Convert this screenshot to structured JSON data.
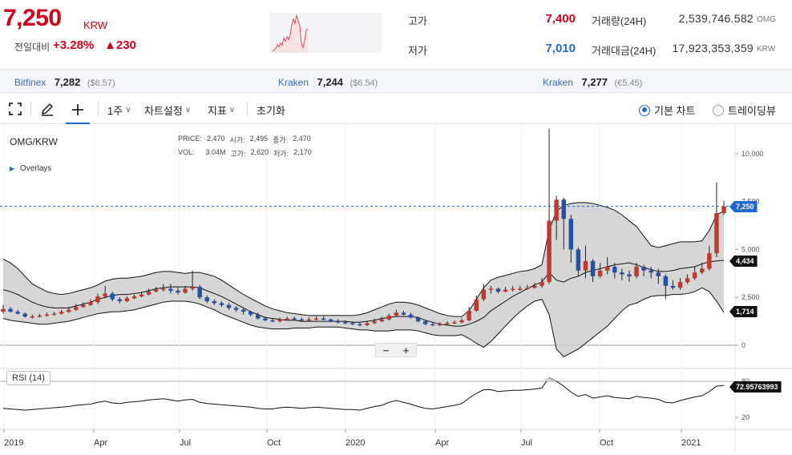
{
  "header": {
    "price": "7,250",
    "unit": "KRW",
    "change_label": "전일대비",
    "change_pct": "+3.28%",
    "change_abs": "▲230",
    "high_label": "고가",
    "high_value": "7,400",
    "low_label": "저가",
    "low_value": "7,010",
    "volume_label": "거래량(24H)",
    "volume_value": "2,539,746.582",
    "volume_unit": "OMG",
    "amount_label": "거래대금(24H)",
    "amount_value": "17,923,353,359",
    "amount_unit": "KRW"
  },
  "exchanges": [
    {
      "name": "Bitfinex",
      "price": "7,282",
      "alt": "($6.57)"
    },
    {
      "name": "Kraken",
      "price": "7,244",
      "alt": "($6.54)"
    },
    {
      "name": "Kraken",
      "price": "7,277",
      "alt": "(€5.45)"
    }
  ],
  "toolbar": {
    "interval": "1주",
    "chart_settings": "차트설정",
    "indicators": "지표",
    "reset": "초기화",
    "basic_chart": "기본 차트",
    "tradingview": "트레이딩뷰"
  },
  "chart_info": {
    "symbol": "OMG/KRW",
    "overlays": "Overlays",
    "price_label": "PRICE:",
    "price": "2,470",
    "open_label": "시가:",
    "open": "2,495",
    "close_label": "종가:",
    "close": "2,470",
    "vol_label": "VOL:",
    "vol": "3.04M",
    "high_label": "고가:",
    "high": "2,620",
    "low_label": "저가:",
    "low": "2,170",
    "last_tag": "7,250",
    "upper_tag": "4,434",
    "lower_tag": "1,714",
    "rsi_label": "RSI (14)",
    "rsi_tag": "72.95763993",
    "zoom_out": "−",
    "zoom_in": "+"
  },
  "colors": {
    "up": "#c0392b",
    "down": "#2451a8",
    "accent_red": "#d0021b",
    "accent_blue": "#1e6ad0",
    "band_fill": "#cfcfcf"
  },
  "chart_data": {
    "type": "candlestick",
    "x_ticks": [
      "2019",
      "Apr",
      "Jul",
      "Oct",
      "2020",
      "Apr",
      "Jul",
      "Oct",
      "2021"
    ],
    "y_ticks": [
      "10,000",
      "7,500",
      "5,000",
      "2,500",
      "0"
    ],
    "ylim": [
      0,
      11500
    ],
    "rsi_ticks": [
      "80",
      "20"
    ],
    "close": [
      1900,
      1750,
      1650,
      1500,
      1500,
      1550,
      1600,
      1650,
      1750,
      1850,
      2000,
      2100,
      2250,
      2550,
      2700,
      2400,
      2300,
      2450,
      2550,
      2650,
      2800,
      2900,
      2950,
      2850,
      2750,
      2950,
      3050,
      2500,
      2300,
      2200,
      2100,
      1950,
      1850,
      1750,
      1600,
      1400,
      1300,
      1250,
      1350,
      1400,
      1350,
      1300,
      1350,
      1400,
      1350,
      1250,
      1200,
      1150,
      1100,
      1050,
      1150,
      1250,
      1350,
      1550,
      1700,
      1600,
      1450,
      1250,
      1100,
      1050,
      1100,
      1150,
      1200,
      1300,
      1800,
      2400,
      2900,
      2950,
      2800,
      2900,
      2950,
      2950,
      3000,
      3100,
      3300,
      6500,
      7600,
      6600,
      5000,
      3900,
      4400,
      3600,
      3900,
      4100,
      3800,
      3700,
      3600,
      4100,
      3900,
      3800,
      3600,
      3100,
      3000,
      3300,
      3500,
      3800,
      4000,
      4800,
      6900,
      7250
    ],
    "open": [
      1750,
      1900,
      1750,
      1650,
      1500,
      1500,
      1550,
      1600,
      1650,
      1750,
      1850,
      2000,
      2100,
      2250,
      2550,
      2700,
      2400,
      2300,
      2450,
      2550,
      2650,
      2800,
      2900,
      2950,
      2850,
      2750,
      2950,
      3050,
      2500,
      2300,
      2200,
      2100,
      1950,
      1850,
      1750,
      1600,
      1400,
      1300,
      1250,
      1350,
      1400,
      1350,
      1300,
      1350,
      1400,
      1350,
      1250,
      1200,
      1150,
      1100,
      1050,
      1150,
      1250,
      1350,
      1550,
      1700,
      1600,
      1450,
      1250,
      1100,
      1050,
      1100,
      1150,
      1200,
      1300,
      1800,
      2400,
      2900,
      2950,
      2800,
      2900,
      2950,
      2950,
      3000,
      3100,
      3300,
      6500,
      7600,
      6600,
      5000,
      3900,
      4400,
      3600,
      3900,
      4100,
      3800,
      3700,
      3600,
      4100,
      3900,
      3800,
      3600,
      3100,
      3000,
      3300,
      3500,
      3800,
      4000,
      4800,
      6900
    ],
    "high": [
      2100,
      2000,
      1850,
      1700,
      1600,
      1650,
      1700,
      1750,
      1850,
      2000,
      2150,
      2250,
      2400,
      2700,
      3100,
      2800,
      2500,
      2550,
      2650,
      2800,
      2950,
      3050,
      3200,
      3200,
      3000,
      3100,
      3900,
      3150,
      2600,
      2400,
      2300,
      2200,
      2050,
      1950,
      1800,
      1700,
      1500,
      1400,
      1450,
      1500,
      1500,
      1450,
      1450,
      1500,
      1500,
      1400,
      1350,
      1300,
      1250,
      1200,
      1250,
      1400,
      1500,
      1650,
      1850,
      1800,
      1700,
      1500,
      1300,
      1200,
      1200,
      1250,
      1300,
      1400,
      2000,
      2600,
      3200,
      3100,
      3000,
      3050,
      3100,
      3100,
      3150,
      3250,
      3500,
      11300,
      7800,
      7700,
      6800,
      5100,
      5200,
      4500,
      4300,
      4600,
      4300,
      4000,
      3900,
      4300,
      4200,
      4100,
      4000,
      3700,
      3400,
      3500,
      3700,
      4100,
      4300,
      5200,
      8500,
      7550
    ],
    "low": [
      1650,
      1700,
      1600,
      1450,
      1400,
      1450,
      1500,
      1550,
      1600,
      1700,
      1800,
      1950,
      2050,
      2150,
      2450,
      2300,
      2200,
      2250,
      2400,
      2500,
      2600,
      2750,
      2800,
      2700,
      2650,
      2700,
      2850,
      2400,
      2200,
      2100,
      2000,
      1850,
      1750,
      1600,
      1500,
      1350,
      1250,
      1200,
      1200,
      1300,
      1300,
      1250,
      1250,
      1300,
      1300,
      1200,
      1150,
      1100,
      1050,
      1000,
      1000,
      1100,
      1200,
      1300,
      1500,
      1550,
      1400,
      1200,
      1050,
      1000,
      1000,
      1050,
      1100,
      1150,
      1250,
      1750,
      2300,
      2700,
      2700,
      2750,
      2800,
      2850,
      2900,
      2950,
      3000,
      3200,
      5500,
      5000,
      4300,
      3600,
      3500,
      3300,
      3500,
      3700,
      3500,
      3400,
      3300,
      3500,
      3600,
      3500,
      3200,
      2400,
      2900,
      2900,
      3200,
      3400,
      3700,
      3900,
      4600,
      6800
    ],
    "rsi": [
      35,
      34,
      33,
      32,
      33,
      34,
      35,
      36,
      37,
      38,
      40,
      41,
      42,
      45,
      47,
      44,
      43,
      45,
      46,
      47,
      49,
      50,
      51,
      49,
      47,
      49,
      50,
      45,
      43,
      42,
      41,
      40,
      39,
      38,
      37,
      35,
      34,
      34,
      36,
      37,
      36,
      35,
      36,
      37,
      36,
      35,
      34,
      33,
      33,
      32,
      35,
      38,
      40,
      45,
      48,
      45,
      42,
      38,
      35,
      34,
      36,
      38,
      40,
      43,
      52,
      60,
      66,
      66,
      63,
      64,
      65,
      65,
      66,
      67,
      69,
      86,
      80,
      72,
      62,
      55,
      58,
      52,
      54,
      56,
      53,
      52,
      51,
      55,
      53,
      52,
      50,
      45,
      44,
      48,
      51,
      54,
      56,
      63,
      72,
      73
    ],
    "bb_upper": [
      4500,
      4300,
      4000,
      3600,
      3200,
      3000,
      2800,
      2700,
      2650,
      2700,
      2800,
      2900,
      3000,
      3150,
      3350,
      3450,
      3500,
      3500,
      3550,
      3600,
      3700,
      3800,
      3850,
      3850,
      3800,
      3750,
      3800,
      3800,
      3700,
      3600,
      3400,
      3150,
      2900,
      2650,
      2450,
      2250,
      2050,
      1900,
      1800,
      1700,
      1650,
      1600,
      1550,
      1550,
      1550,
      1550,
      1550,
      1550,
      1550,
      1600,
      1700,
      1850,
      2000,
      2150,
      2250,
      2250,
      2200,
      2100,
      1950,
      1800,
      1650,
      1550,
      1500,
      1500,
      1800,
      2400,
      3000,
      3400,
      3550,
      3650,
      3750,
      3850,
      3900,
      4000,
      4200,
      6000,
      7000,
      7300,
      7400,
      7450,
      7450,
      7400,
      7300,
      7200,
      7050,
      6800,
      6500,
      6200,
      5700,
      5200,
      5100,
      5200,
      5300,
      5400,
      5400,
      5400,
      5450,
      6000,
      6800,
      7000
    ],
    "bb_lower": [
      1400,
      1300,
      1250,
      1200,
      1150,
      1100,
      1100,
      1150,
      1200,
      1250,
      1350,
      1450,
      1550,
      1650,
      1700,
      1750,
      1750,
      1800,
      1850,
      1950,
      2050,
      2150,
      2250,
      2300,
      2300,
      2300,
      2250,
      2150,
      2000,
      1850,
      1650,
      1500,
      1350,
      1200,
      1050,
      950,
      900,
      850,
      850,
      850,
      900,
      900,
      900,
      950,
      950,
      950,
      950,
      900,
      850,
      800,
      800,
      750,
      750,
      750,
      800,
      800,
      800,
      750,
      650,
      550,
      500,
      500,
      500,
      550,
      350,
      100,
      -100,
      200,
      600,
      1000,
      1400,
      1750,
      2050,
      2300,
      2400,
      1600,
      -200,
      -600,
      -400,
      -200,
      100,
      400,
      700,
      1000,
      1400,
      1800,
      2100,
      2200,
      2400,
      2550,
      2600,
      2600,
      2650,
      2650,
      2700,
      2800,
      3000,
      2800,
      2300,
      1714
    ],
    "bb_mid": [
      2900,
      2800,
      2650,
      2450,
      2250,
      2100,
      2000,
      1950,
      1950,
      1950,
      2050,
      2150,
      2250,
      2400,
      2500,
      2600,
      2650,
      2650,
      2700,
      2750,
      2850,
      2950,
      3000,
      3050,
      3050,
      3050,
      3050,
      3000,
      2850,
      2700,
      2550,
      2350,
      2150,
      1950,
      1750,
      1600,
      1450,
      1400,
      1350,
      1300,
      1300,
      1250,
      1250,
      1250,
      1250,
      1250,
      1250,
      1250,
      1200,
      1200,
      1250,
      1300,
      1400,
      1450,
      1500,
      1500,
      1500,
      1450,
      1300,
      1200,
      1100,
      1050,
      1000,
      1000,
      1100,
      1250,
      1450,
      1800,
      2050,
      2300,
      2550,
      2750,
      2950,
      3150,
      3300,
      3800,
      3400,
      3300,
      3500,
      3600,
      3800,
      3900,
      4000,
      4100,
      4200,
      4250,
      4300,
      4200,
      4050,
      3950,
      3850,
      3850,
      3900,
      4000,
      4050,
      4100,
      4250,
      4350,
      4400,
      4434
    ]
  }
}
